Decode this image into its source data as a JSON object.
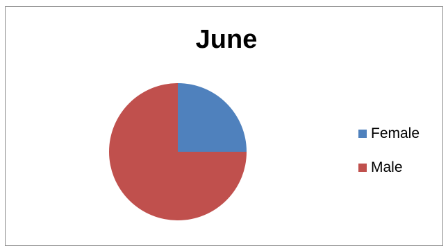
{
  "chart_data": {
    "type": "pie",
    "title": "June",
    "categories": [
      "Female",
      "Male"
    ],
    "values": [
      25,
      75
    ],
    "colors": [
      "#4f81bd",
      "#c0504d"
    ],
    "legend_position": "right"
  }
}
